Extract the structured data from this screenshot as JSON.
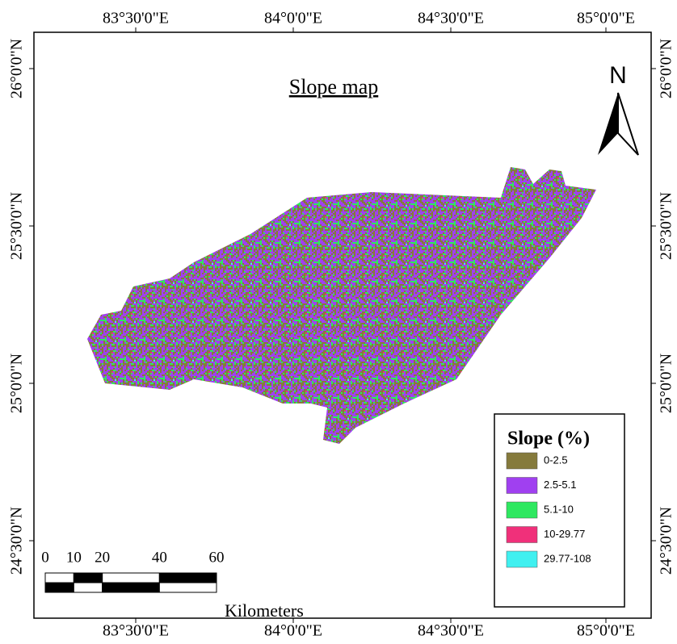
{
  "title": "Slope map",
  "north": "N",
  "longitude_ticks": [
    "83°30'0\"E",
    "84°0'0\"E",
    "84°30'0\"E",
    "85°0'0\"E"
  ],
  "latitude_ticks": [
    "26°0'0\"N",
    "25°30'0\"N",
    "25°0'0\"N",
    "24°30'0\"N"
  ],
  "legend": {
    "title": "Slope (%)",
    "items": [
      {
        "label": "0-2.5",
        "color": "#857a3c"
      },
      {
        "label": "2.5-5.1",
        "color": "#a040f0"
      },
      {
        "label": "5.1-10",
        "color": "#2ee860"
      },
      {
        "label": "10-29.77",
        "color": "#f0307a"
      },
      {
        "label": "29.77-108",
        "color": "#40f0f0"
      }
    ]
  },
  "scale_bar": {
    "ticks": [
      0,
      10,
      20,
      40,
      60
    ],
    "unit": "Kilometers"
  }
}
